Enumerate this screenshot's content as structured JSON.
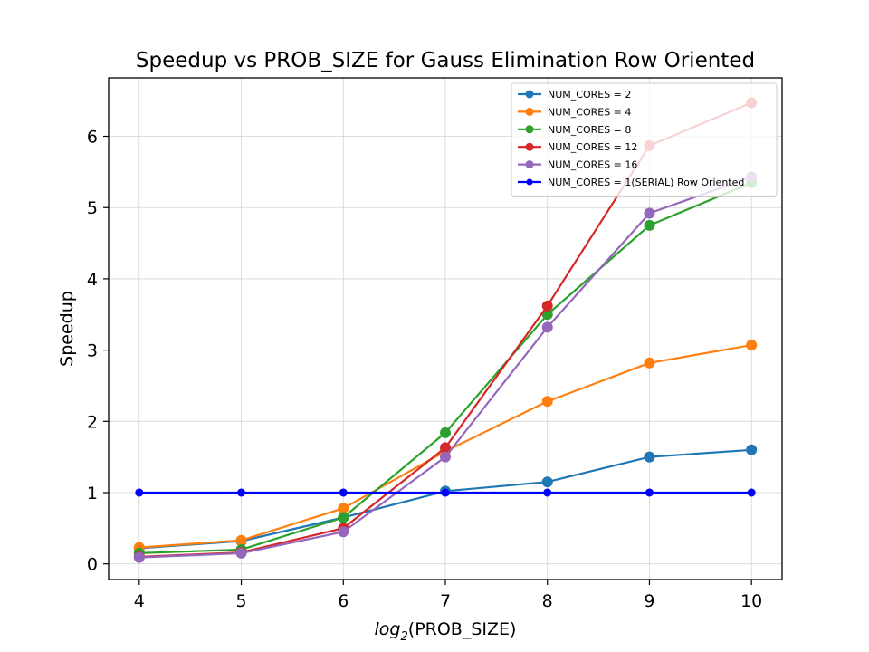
{
  "chart_data": {
    "type": "line",
    "title": "Speedup vs PROB_SIZE for Gauss Elimination Row Oriented",
    "xlabel_prefix": "log",
    "xlabel_subscript": "2",
    "xlabel_suffix": "(PROB_SIZE)",
    "ylabel": "Speedup",
    "x": [
      4,
      5,
      6,
      7,
      8,
      9,
      10
    ],
    "xlim": [
      3.7,
      10.3
    ],
    "ylim": [
      -0.22,
      6.82
    ],
    "xticks": [
      4,
      5,
      6,
      7,
      8,
      9,
      10
    ],
    "yticks": [
      0,
      1,
      2,
      3,
      4,
      5,
      6
    ],
    "grid": true,
    "legend_position": "top-right",
    "series": [
      {
        "name": "NUM_CORES = 2",
        "color": "#1f77b4",
        "marker": "circle",
        "values": [
          0.22,
          0.32,
          0.65,
          1.02,
          1.15,
          1.5,
          1.6
        ]
      },
      {
        "name": "NUM_CORES = 4",
        "color": "#ff7f0e",
        "marker": "circle",
        "values": [
          0.23,
          0.33,
          0.78,
          1.58,
          2.28,
          2.82,
          3.07
        ]
      },
      {
        "name": "NUM_CORES = 8",
        "color": "#2ca02c",
        "marker": "circle",
        "values": [
          0.15,
          0.2,
          0.65,
          1.84,
          3.5,
          4.75,
          5.35
        ]
      },
      {
        "name": "NUM_CORES = 12",
        "color": "#d62728",
        "marker": "circle",
        "values": [
          0.1,
          0.16,
          0.5,
          1.63,
          3.62,
          5.87,
          6.47
        ]
      },
      {
        "name": "NUM_CORES = 16",
        "color": "#9467bd",
        "marker": "circle",
        "values": [
          0.09,
          0.15,
          0.45,
          1.5,
          3.32,
          4.92,
          5.43
        ]
      },
      {
        "name": "NUM_CORES = 1(SERIAL) Row Oriented",
        "color": "#0000ff",
        "marker": "circle-small",
        "values": [
          1,
          1,
          1,
          1,
          1,
          1,
          1
        ]
      }
    ]
  }
}
